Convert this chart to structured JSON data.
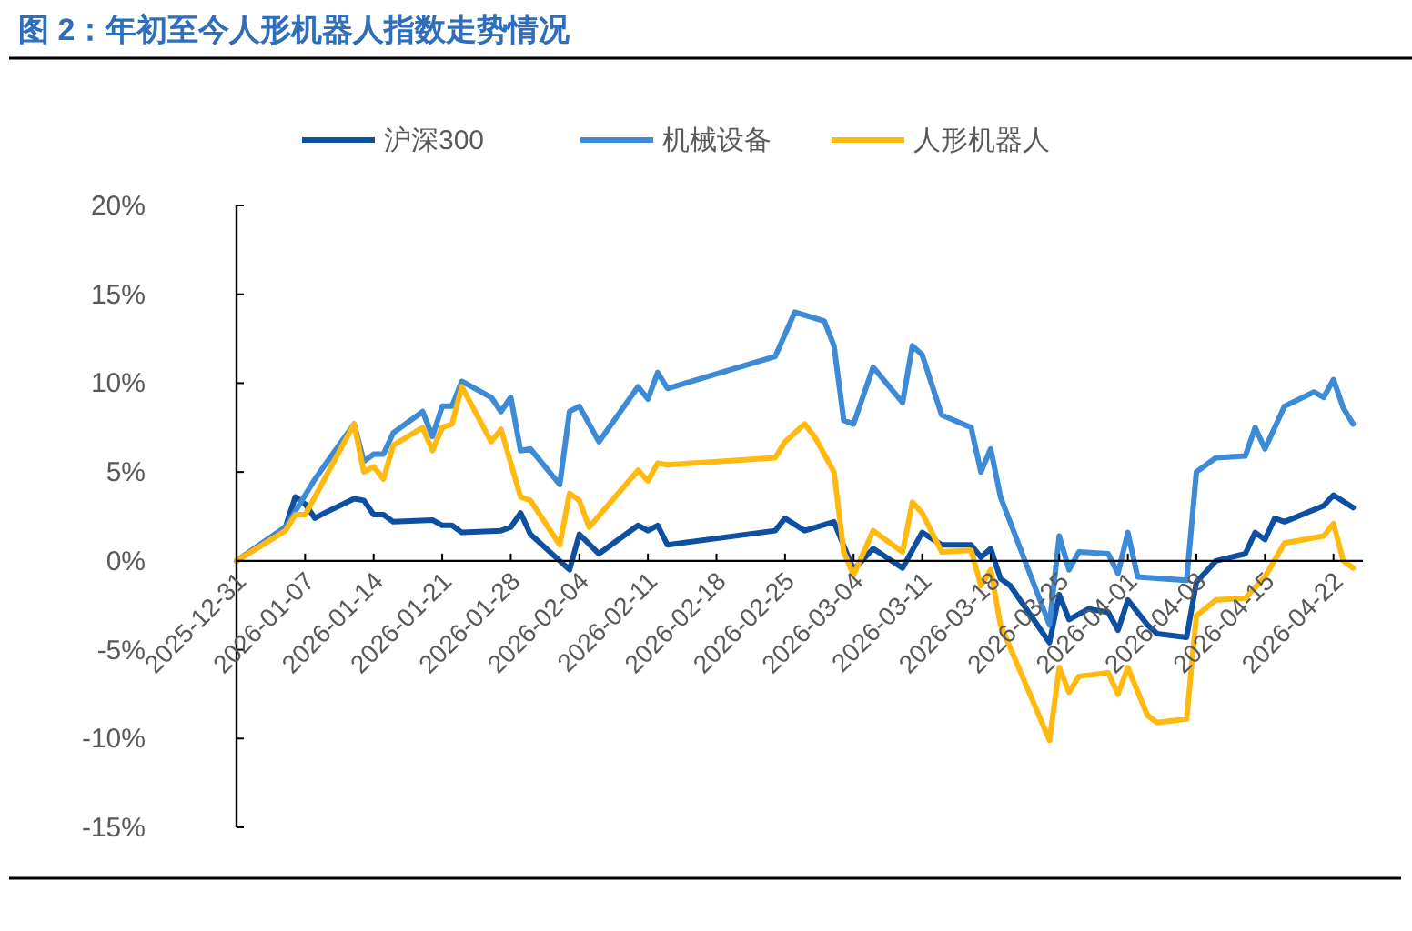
{
  "chart_data": {
    "type": "line",
    "title": "图 2：年初至今人形机器人指数走势情况",
    "xlim": [
      "2025-12-31",
      "2026-04-25"
    ],
    "xticks": [
      "2025-12-31",
      "2026-01-07",
      "2026-01-14",
      "2026-01-21",
      "2026-01-28",
      "2026-02-04",
      "2026-02-11",
      "2026-02-18",
      "2026-02-25",
      "2026-03-04",
      "2026-03-11",
      "2026-03-18",
      "2026-03-25",
      "2026-04-01",
      "2026-04-08",
      "2026-04-15",
      "2026-04-22"
    ],
    "ylim": [
      -15,
      20
    ],
    "yticks": [
      {
        "value": -15,
        "label": "-15%"
      },
      {
        "value": -10,
        "label": "-10%"
      },
      {
        "value": -5,
        "label": "-5%"
      },
      {
        "value": 0,
        "label": "0%"
      },
      {
        "value": 5,
        "label": "5%"
      },
      {
        "value": 10,
        "label": "10%"
      },
      {
        "value": 15,
        "label": "15%"
      },
      {
        "value": 20,
        "label": "20%"
      }
    ],
    "legend": "top",
    "series": [
      {
        "name": "沪深300",
        "color": "#0d4fa0",
        "x": [
          "2025-12-31",
          "2026-01-05",
          "2026-01-06",
          "2026-01-07",
          "2026-01-08",
          "2026-01-09",
          "2026-01-12",
          "2026-01-13",
          "2026-01-14",
          "2026-01-15",
          "2026-01-16",
          "2026-01-20",
          "2026-01-21",
          "2026-01-22",
          "2026-01-23",
          "2026-01-27",
          "2026-01-28",
          "2026-01-29",
          "2026-01-30",
          "2026-02-03",
          "2026-02-04",
          "2026-02-06",
          "2026-02-10",
          "2026-02-11",
          "2026-02-12",
          "2026-02-13",
          "2026-02-24",
          "2026-02-25",
          "2026-02-27",
          "2026-03-02",
          "2026-03-04",
          "2026-03-06",
          "2026-03-09",
          "2026-03-11",
          "2026-03-13",
          "2026-03-16",
          "2026-03-17",
          "2026-03-18",
          "2026-03-19",
          "2026-03-20",
          "2026-03-24",
          "2026-03-25",
          "2026-03-26",
          "2026-03-28",
          "2026-03-30",
          "2026-03-31",
          "2026-04-01",
          "2026-04-03",
          "2026-04-04",
          "2026-04-07",
          "2026-04-08",
          "2026-04-10",
          "2026-04-13",
          "2026-04-14",
          "2026-04-15",
          "2026-04-16",
          "2026-04-17",
          "2026-04-21",
          "2026-04-22",
          "2026-04-24"
        ],
        "values": [
          0,
          1.9,
          3.6,
          3.2,
          2.4,
          2.7,
          3.5,
          3.4,
          2.6,
          2.6,
          2.2,
          2.3,
          2.0,
          2.0,
          1.6,
          1.7,
          1.9,
          2.7,
          1.5,
          -0.5,
          1.5,
          0.4,
          2.0,
          1.7,
          2.0,
          0.9,
          1.7,
          2.4,
          1.7,
          2.2,
          -0.5,
          0.7,
          -0.4,
          1.6,
          0.9,
          0.9,
          0.2,
          0.7,
          -1.0,
          -1.4,
          -4.6,
          -1.9,
          -3.3,
          -2.7,
          -2.9,
          -3.9,
          -2.2,
          -3.6,
          -4.1,
          -4.3,
          -1.2,
          0,
          0.4,
          1.6,
          1.2,
          2.4,
          2.2,
          3.1,
          3.7,
          3.0
        ]
      },
      {
        "name": "机械设备",
        "color": "#3d8ad6",
        "x": [
          "2025-12-31",
          "2026-01-05",
          "2026-01-08",
          "2026-01-12",
          "2026-01-13",
          "2026-01-14",
          "2026-01-15",
          "2026-01-16",
          "2026-01-19",
          "2026-01-20",
          "2026-01-21",
          "2026-01-22",
          "2026-01-23",
          "2026-01-26",
          "2026-01-27",
          "2026-01-28",
          "2026-01-29",
          "2026-01-30",
          "2026-02-02",
          "2026-02-03",
          "2026-02-04",
          "2026-02-06",
          "2026-02-10",
          "2026-02-11",
          "2026-02-12",
          "2026-02-13",
          "2026-02-24",
          "2026-02-26",
          "2026-03-01",
          "2026-03-02",
          "2026-03-03",
          "2026-03-04",
          "2026-03-06",
          "2026-03-09",
          "2026-03-10",
          "2026-03-11",
          "2026-03-13",
          "2026-03-16",
          "2026-03-17",
          "2026-03-18",
          "2026-03-19",
          "2026-03-24",
          "2026-03-25",
          "2026-03-26",
          "2026-03-27",
          "2026-03-30",
          "2026-03-31",
          "2026-04-01",
          "2026-04-02",
          "2026-04-07",
          "2026-04-08",
          "2026-04-10",
          "2026-04-13",
          "2026-04-14",
          "2026-04-15",
          "2026-04-17",
          "2026-04-20",
          "2026-04-21",
          "2026-04-22",
          "2026-04-23",
          "2026-04-24"
        ],
        "values": [
          0,
          1.9,
          4.6,
          7.7,
          5.6,
          6.0,
          6.0,
          7.2,
          8.4,
          7.0,
          8.7,
          8.7,
          10.1,
          9.2,
          8.4,
          9.2,
          6.2,
          6.3,
          4.3,
          8.4,
          8.7,
          6.7,
          9.8,
          9.1,
          10.6,
          9.7,
          11.5,
          14.0,
          13.5,
          12.1,
          7.9,
          7.7,
          10.9,
          8.9,
          12.1,
          11.6,
          8.2,
          7.5,
          5.0,
          6.3,
          3.6,
          -3.6,
          1.4,
          -0.5,
          0.5,
          0.4,
          -0.7,
          1.6,
          -0.9,
          -1.1,
          5.0,
          5.8,
          5.9,
          7.5,
          6.3,
          8.7,
          9.5,
          9.2,
          10.2,
          8.6,
          7.7
        ]
      },
      {
        "name": "人形机器人",
        "color": "#ffb90f",
        "x": [
          "2025-12-31",
          "2026-01-05",
          "2026-01-06",
          "2026-01-07",
          "2026-01-08",
          "2026-01-12",
          "2026-01-13",
          "2026-01-14",
          "2026-01-15",
          "2026-01-16",
          "2026-01-19",
          "2026-01-20",
          "2026-01-21",
          "2026-01-22",
          "2026-01-23",
          "2026-01-26",
          "2026-01-27",
          "2026-01-29",
          "2026-01-30",
          "2026-02-02",
          "2026-02-03",
          "2026-02-04",
          "2026-02-05",
          "2026-02-10",
          "2026-02-11",
          "2026-02-12",
          "2026-02-13",
          "2026-02-24",
          "2026-02-25",
          "2026-02-27",
          "2026-02-28",
          "2026-03-02",
          "2026-03-03",
          "2026-03-04",
          "2026-03-06",
          "2026-03-09",
          "2026-03-10",
          "2026-03-11",
          "2026-03-13",
          "2026-03-16",
          "2026-03-17",
          "2026-03-18",
          "2026-03-19",
          "2026-03-24",
          "2026-03-25",
          "2026-03-26",
          "2026-03-27",
          "2026-03-30",
          "2026-03-31",
          "2026-04-01",
          "2026-04-03",
          "2026-04-04",
          "2026-04-07",
          "2026-04-08",
          "2026-04-10",
          "2026-04-13",
          "2026-04-15",
          "2026-04-17",
          "2026-04-21",
          "2026-04-22",
          "2026-04-23",
          "2026-04-24"
        ],
        "values": [
          0,
          1.7,
          2.6,
          2.6,
          3.6,
          7.7,
          5.0,
          5.3,
          4.6,
          6.5,
          7.5,
          6.2,
          7.5,
          7.7,
          9.8,
          6.7,
          7.4,
          3.6,
          3.4,
          0.9,
          3.8,
          3.4,
          1.9,
          5.1,
          4.5,
          5.5,
          5.4,
          5.8,
          6.7,
          7.7,
          7.0,
          5.0,
          0.5,
          -0.8,
          1.7,
          0.5,
          3.3,
          2.7,
          0.5,
          0.6,
          -1.4,
          -0.5,
          -3.6,
          -10.1,
          -6.0,
          -7.4,
          -6.5,
          -6.3,
          -7.5,
          -6.0,
          -8.7,
          -9.1,
          -8.9,
          -3.1,
          -2.2,
          -2.1,
          -0.9,
          1.0,
          1.4,
          2.1,
          0,
          -0.4
        ]
      }
    ]
  }
}
